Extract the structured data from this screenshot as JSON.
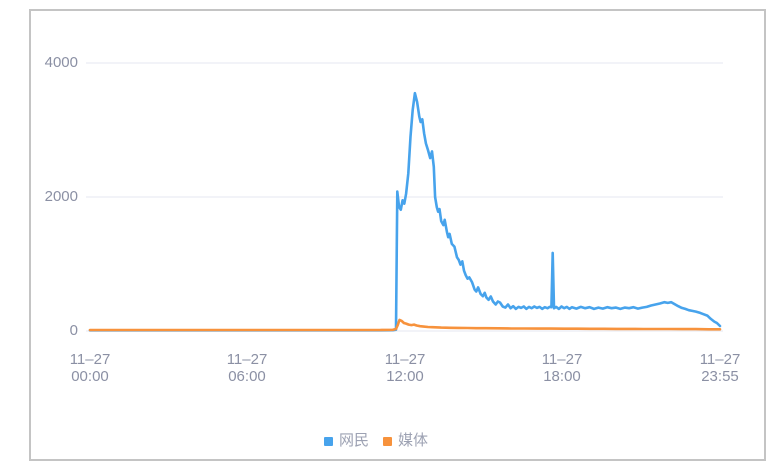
{
  "colors": {
    "netizen_line": "#47a3ec",
    "media_line": "#f7923c",
    "axis_text": "#8b90a4",
    "legend_text": "#9da2b3",
    "gridline": "#e9ecf3",
    "card_border": "#c4c4c4",
    "background": "#ffffff"
  },
  "chart_data": {
    "type": "line",
    "title": "",
    "grid": "horizontal-only",
    "legend": {
      "position": "bottom",
      "items": [
        "网民",
        "媒体"
      ]
    },
    "y_axis": {
      "range": [
        0,
        4000
      ],
      "ticks": [
        0,
        2000,
        4000
      ],
      "labels": [
        "0",
        "2000",
        "4000"
      ]
    },
    "x_axis": {
      "unit": "minutes-of-day",
      "range_minutes": [
        0,
        1435
      ],
      "ticks": [
        {
          "date": "11–27",
          "time": "00:00",
          "t": 0
        },
        {
          "date": "11–27",
          "time": "06:00",
          "t": 360
        },
        {
          "date": "11–27",
          "time": "12:00",
          "t": 720
        },
        {
          "date": "11–27",
          "time": "18:00",
          "t": 1080
        },
        {
          "date": "11–27",
          "time": "23:55",
          "t": 1435
        }
      ]
    },
    "series": [
      {
        "name": "网民",
        "color": "#47a3ec",
        "points": [
          [
            0,
            10
          ],
          [
            120,
            10
          ],
          [
            240,
            10
          ],
          [
            360,
            10
          ],
          [
            480,
            10
          ],
          [
            600,
            10
          ],
          [
            660,
            10
          ],
          [
            690,
            12
          ],
          [
            697,
            20
          ],
          [
            700,
            2080
          ],
          [
            704,
            1850
          ],
          [
            708,
            1810
          ],
          [
            712,
            1950
          ],
          [
            716,
            1900
          ],
          [
            720,
            2050
          ],
          [
            725,
            2350
          ],
          [
            730,
            2900
          ],
          [
            735,
            3300
          ],
          [
            740,
            3550
          ],
          [
            745,
            3420
          ],
          [
            750,
            3200
          ],
          [
            753,
            3120
          ],
          [
            757,
            3160
          ],
          [
            761,
            2950
          ],
          [
            765,
            2800
          ],
          [
            770,
            2700
          ],
          [
            775,
            2580
          ],
          [
            779,
            2680
          ],
          [
            783,
            2450
          ],
          [
            786,
            2000
          ],
          [
            790,
            1850
          ],
          [
            793,
            1780
          ],
          [
            796,
            1820
          ],
          [
            800,
            1640
          ],
          [
            805,
            1580
          ],
          [
            808,
            1660
          ],
          [
            813,
            1480
          ],
          [
            816,
            1400
          ],
          [
            819,
            1450
          ],
          [
            824,
            1300
          ],
          [
            830,
            1260
          ],
          [
            836,
            1100
          ],
          [
            840,
            1060
          ],
          [
            844,
            990
          ],
          [
            848,
            1040
          ],
          [
            852,
            900
          ],
          [
            856,
            830
          ],
          [
            860,
            780
          ],
          [
            864,
            800
          ],
          [
            870,
            730
          ],
          [
            876,
            620
          ],
          [
            880,
            590
          ],
          [
            884,
            650
          ],
          [
            890,
            550
          ],
          [
            895,
            520
          ],
          [
            899,
            570
          ],
          [
            903,
            500
          ],
          [
            908,
            465
          ],
          [
            913,
            515
          ],
          [
            918,
            440
          ],
          [
            924,
            395
          ],
          [
            929,
            440
          ],
          [
            934,
            425
          ],
          [
            940,
            365
          ],
          [
            946,
            350
          ],
          [
            952,
            395
          ],
          [
            958,
            340
          ],
          [
            964,
            370
          ],
          [
            970,
            330
          ],
          [
            976,
            360
          ],
          [
            982,
            345
          ],
          [
            988,
            365
          ],
          [
            994,
            330
          ],
          [
            1000,
            360
          ],
          [
            1006,
            340
          ],
          [
            1012,
            365
          ],
          [
            1018,
            345
          ],
          [
            1024,
            360
          ],
          [
            1030,
            330
          ],
          [
            1036,
            355
          ],
          [
            1042,
            340
          ],
          [
            1047,
            360
          ],
          [
            1051,
            355
          ],
          [
            1054,
            1165
          ],
          [
            1057,
            340
          ],
          [
            1062,
            360
          ],
          [
            1068,
            330
          ],
          [
            1074,
            365
          ],
          [
            1080,
            340
          ],
          [
            1086,
            360
          ],
          [
            1092,
            330
          ],
          [
            1098,
            355
          ],
          [
            1108,
            335
          ],
          [
            1118,
            360
          ],
          [
            1128,
            340
          ],
          [
            1138,
            355
          ],
          [
            1148,
            330
          ],
          [
            1158,
            350
          ],
          [
            1168,
            335
          ],
          [
            1178,
            355
          ],
          [
            1188,
            340
          ],
          [
            1198,
            350
          ],
          [
            1208,
            330
          ],
          [
            1218,
            350
          ],
          [
            1228,
            340
          ],
          [
            1238,
            355
          ],
          [
            1248,
            335
          ],
          [
            1258,
            350
          ],
          [
            1268,
            360
          ],
          [
            1278,
            380
          ],
          [
            1288,
            395
          ],
          [
            1298,
            410
          ],
          [
            1308,
            430
          ],
          [
            1316,
            420
          ],
          [
            1324,
            430
          ],
          [
            1332,
            400
          ],
          [
            1340,
            370
          ],
          [
            1348,
            345
          ],
          [
            1356,
            330
          ],
          [
            1364,
            310
          ],
          [
            1372,
            300
          ],
          [
            1380,
            290
          ],
          [
            1390,
            270
          ],
          [
            1398,
            250
          ],
          [
            1406,
            230
          ],
          [
            1414,
            180
          ],
          [
            1422,
            140
          ],
          [
            1428,
            120
          ],
          [
            1435,
            75
          ]
        ]
      },
      {
        "name": "媒体",
        "color": "#f7923c",
        "points": [
          [
            0,
            15
          ],
          [
            120,
            15
          ],
          [
            240,
            15
          ],
          [
            360,
            15
          ],
          [
            480,
            15
          ],
          [
            600,
            15
          ],
          [
            660,
            15
          ],
          [
            690,
            18
          ],
          [
            697,
            30
          ],
          [
            701,
            90
          ],
          [
            705,
            165
          ],
          [
            710,
            150
          ],
          [
            715,
            120
          ],
          [
            720,
            110
          ],
          [
            726,
            95
          ],
          [
            732,
            88
          ],
          [
            738,
            95
          ],
          [
            744,
            82
          ],
          [
            752,
            72
          ],
          [
            760,
            66
          ],
          [
            770,
            60
          ],
          [
            780,
            56
          ],
          [
            800,
            50
          ],
          [
            820,
            48
          ],
          [
            840,
            46
          ],
          [
            860,
            45
          ],
          [
            880,
            42
          ],
          [
            900,
            42
          ],
          [
            930,
            40
          ],
          [
            960,
            38
          ],
          [
            990,
            38
          ],
          [
            1020,
            36
          ],
          [
            1050,
            36
          ],
          [
            1080,
            35
          ],
          [
            1110,
            35
          ],
          [
            1140,
            33
          ],
          [
            1170,
            33
          ],
          [
            1200,
            32
          ],
          [
            1230,
            32
          ],
          [
            1260,
            30
          ],
          [
            1290,
            30
          ],
          [
            1320,
            30
          ],
          [
            1350,
            28
          ],
          [
            1380,
            28
          ],
          [
            1410,
            26
          ],
          [
            1435,
            25
          ]
        ]
      }
    ]
  }
}
